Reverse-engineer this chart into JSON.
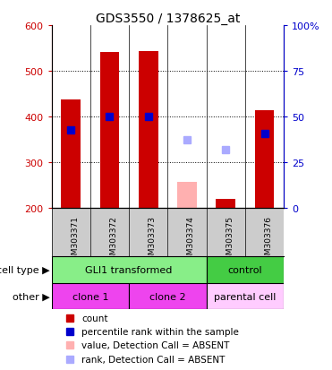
{
  "title": "GDS3550 / 1378625_at",
  "samples": [
    "GSM303371",
    "GSM303372",
    "GSM303373",
    "GSM303374",
    "GSM303375",
    "GSM303376"
  ],
  "ylim_left": [
    200,
    600
  ],
  "ylim_right": [
    0,
    100
  ],
  "yticks_left": [
    200,
    300,
    400,
    500,
    600
  ],
  "yticks_right": [
    0,
    25,
    50,
    75,
    100
  ],
  "ytick_labels_right": [
    "0",
    "25",
    "50",
    "75",
    "100%"
  ],
  "count_values": [
    438,
    542,
    543,
    null,
    220,
    413
  ],
  "count_absent": [
    null,
    null,
    null,
    257,
    null,
    null
  ],
  "percentile_values": [
    370,
    400,
    400,
    null,
    null,
    363
  ],
  "percentile_absent": [
    null,
    null,
    null,
    350,
    328,
    null
  ],
  "count_color": "#cc0000",
  "count_absent_color": "#ffb0b0",
  "percentile_color": "#0000cc",
  "percentile_absent_color": "#aaaaff",
  "cell_type_labels": [
    "GLI1 transformed",
    "control"
  ],
  "cell_type_color_gli": "#88ee88",
  "cell_type_color_control": "#44cc44",
  "other_labels": [
    "clone 1",
    "clone 2",
    "parental cell"
  ],
  "other_color_clone": "#ee44ee",
  "other_color_parental": "#ffccff",
  "legend_items": [
    {
      "label": "count",
      "color": "#cc0000"
    },
    {
      "label": "percentile rank within the sample",
      "color": "#0000cc"
    },
    {
      "label": "value, Detection Call = ABSENT",
      "color": "#ffb0b0"
    },
    {
      "label": "rank, Detection Call = ABSENT",
      "color": "#aaaaff"
    }
  ],
  "marker_size": 6,
  "left_axis_color": "#cc0000",
  "right_axis_color": "#0000cc",
  "grid_yticks": [
    300,
    400,
    500
  ],
  "background_color": "#ffffff",
  "tick_label_bg": "#cccccc",
  "bar_width": 0.5
}
